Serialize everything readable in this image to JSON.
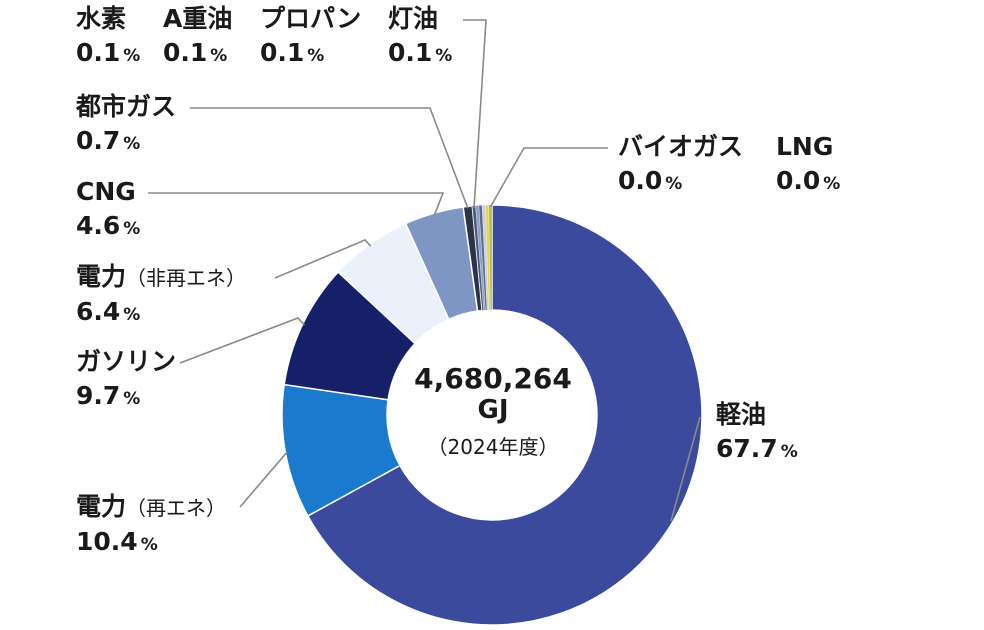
{
  "chart_data": {
    "type": "pie",
    "style": "donut",
    "center": {
      "total": "4,680,264",
      "unit": "GJ",
      "period": "（2024年度）"
    },
    "slices": [
      {
        "key": "keiyu",
        "name": "軽油",
        "sub": "",
        "value": 67.7,
        "color": "#3c4a9e"
      },
      {
        "key": "denryoku_re",
        "name": "電力",
        "sub": "（再エネ）",
        "value": 10.4,
        "color": "#1a7acd"
      },
      {
        "key": "gasoline",
        "name": "ガソリン",
        "sub": "",
        "value": 9.7,
        "color": "#152068"
      },
      {
        "key": "denryoku_nre",
        "name": "電力",
        "sub": "（非再エネ）",
        "value": 6.4,
        "color": "#eaf1fa"
      },
      {
        "key": "cng",
        "name": "CNG",
        "sub": "",
        "value": 4.6,
        "color": "#7f96c4"
      },
      {
        "key": "toshigas",
        "name": "都市ガス",
        "sub": "",
        "value": 0.7,
        "color": "#2a3348"
      },
      {
        "key": "touyu",
        "name": "灯油",
        "sub": "",
        "value": 0.1,
        "color": "#4a5a78"
      },
      {
        "key": "propane",
        "name": "プロパン",
        "sub": "",
        "value": 0.1,
        "color": "#8aa0c8"
      },
      {
        "key": "ajuyu",
        "name": "A重油",
        "sub": "",
        "value": 0.1,
        "color": "#5a6a90"
      },
      {
        "key": "suiso",
        "name": "水素",
        "sub": "",
        "value": 0.1,
        "color": "#c9cfdc"
      },
      {
        "key": "lng",
        "name": "LNG",
        "sub": "",
        "value": 0.0,
        "color": "#e3d35a"
      },
      {
        "key": "biogas",
        "name": "バイオガス",
        "sub": "",
        "value": 0.0,
        "color": "#b5bd4a"
      }
    ],
    "unit_symbol": "%"
  }
}
